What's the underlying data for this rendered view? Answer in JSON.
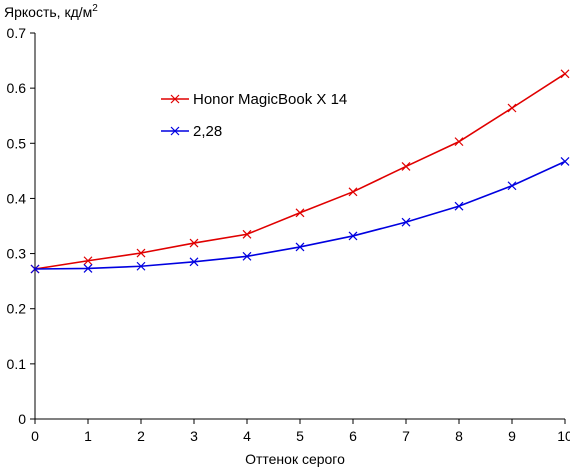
{
  "chart_data": {
    "type": "line",
    "title": "",
    "xlabel": "Оттенок серого",
    "ylabel": "Яркость, кд/м",
    "ylabel_superscript": "2",
    "x": [
      0,
      1,
      2,
      3,
      4,
      5,
      6,
      7,
      8,
      9,
      10
    ],
    "xlim": [
      0,
      10
    ],
    "ylim": [
      0,
      0.7
    ],
    "x_ticks": [
      "0",
      "1",
      "2",
      "3",
      "4",
      "5",
      "6",
      "7",
      "8",
      "9",
      "10"
    ],
    "y_ticks": [
      "0",
      "0.1",
      "0.2",
      "0.3",
      "0.4",
      "0.5",
      "0.6",
      "0.7"
    ],
    "y_tick_values": [
      0,
      0.1,
      0.2,
      0.3,
      0.4,
      0.5,
      0.6,
      0.7
    ],
    "grid": false,
    "legend_position": "top-center",
    "series": [
      {
        "name": "Honor MagicBook X 14",
        "color": "#e00000",
        "marker": "x",
        "values": [
          0.272,
          0.287,
          0.301,
          0.319,
          0.335,
          0.374,
          0.412,
          0.458,
          0.503,
          0.564,
          0.626
        ]
      },
      {
        "name": "2,28",
        "color": "#0000e0",
        "marker": "x",
        "values": [
          0.272,
          0.273,
          0.277,
          0.285,
          0.295,
          0.312,
          0.332,
          0.357,
          0.386,
          0.423,
          0.467
        ]
      }
    ]
  }
}
